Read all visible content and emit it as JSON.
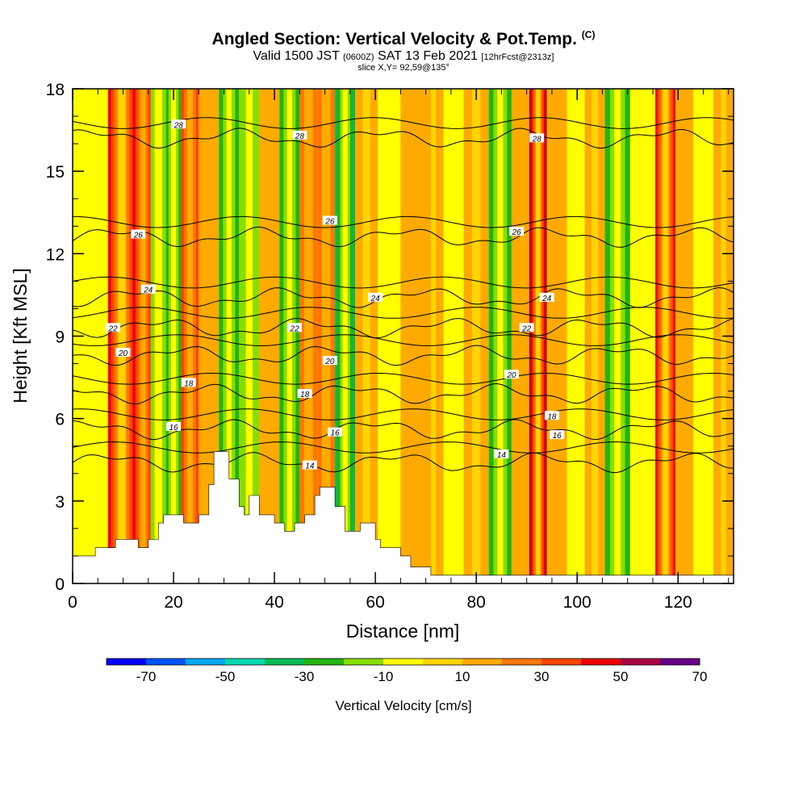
{
  "header": {
    "title": "Angled Section: Vertical Velocity & Pot.Temp.",
    "title_mark": "(C)",
    "valid_prefix": "Valid 1500 JST",
    "valid_utc": "(0600Z)",
    "valid_date": "SAT 13 Feb 2021",
    "fcst": "[12hrFcst@2313z]",
    "slice": "slice X,Y= 92,59@135°"
  },
  "chart_data": {
    "type": "heatmap",
    "xlabel": "Distance [nm]",
    "ylabel": "Height [Kft MSL]",
    "xlim": [
      0,
      131
    ],
    "ylim": [
      0,
      18
    ],
    "x_ticks": [
      0,
      20,
      40,
      60,
      80,
      100,
      120
    ],
    "y_ticks": [
      0,
      3,
      6,
      9,
      12,
      15,
      18
    ],
    "colorbar": {
      "label": "Vertical Velocity [cm/s]",
      "tick_labels": [
        -70,
        -50,
        -30,
        -10,
        10,
        30,
        50,
        70
      ],
      "levels": [
        -80,
        -70,
        -60,
        -50,
        -40,
        -30,
        -20,
        -10,
        0,
        10,
        20,
        30,
        40,
        50,
        60,
        70,
        80
      ],
      "colors": [
        "#0000ff",
        "#0055ff",
        "#00aaff",
        "#00d8b0",
        "#00bb55",
        "#22b410",
        "#88dd00",
        "#ffff00",
        "#ffd400",
        "#ffaa00",
        "#ff7700",
        "#ff4400",
        "#ee0000",
        "#aa0044",
        "#660088"
      ]
    },
    "velocity_columns": [
      {
        "x": 3,
        "v": -10
      },
      {
        "x": 11,
        "v": 45
      },
      {
        "x": 14,
        "v": 30
      },
      {
        "x": 17,
        "v": -20
      },
      {
        "x": 20,
        "v": -30
      },
      {
        "x": 23,
        "v": 30
      },
      {
        "x": 27,
        "v": 10
      },
      {
        "x": 31,
        "v": -25
      },
      {
        "x": 35,
        "v": -15
      },
      {
        "x": 39,
        "v": 10
      },
      {
        "x": 43,
        "v": -25
      },
      {
        "x": 47,
        "v": 20
      },
      {
        "x": 50,
        "v": 20
      },
      {
        "x": 54,
        "v": -40
      },
      {
        "x": 58,
        "v": 15
      },
      {
        "x": 63,
        "v": -10
      },
      {
        "x": 67,
        "v": 10
      },
      {
        "x": 72,
        "v": 12
      },
      {
        "x": 75,
        "v": -10
      },
      {
        "x": 80,
        "v": 15
      },
      {
        "x": 85,
        "v": -25
      },
      {
        "x": 89,
        "v": 10
      },
      {
        "x": 92,
        "v": 55
      },
      {
        "x": 96,
        "v": 10
      },
      {
        "x": 100,
        "v": -10
      },
      {
        "x": 103,
        "v": 15
      },
      {
        "x": 108,
        "v": -25
      },
      {
        "x": 113,
        "v": -10
      },
      {
        "x": 118,
        "v": 45
      },
      {
        "x": 121,
        "v": 10
      },
      {
        "x": 125,
        "v": -10
      },
      {
        "x": 129,
        "v": 12
      }
    ],
    "terrain": [
      {
        "x": 0,
        "h": 1.0
      },
      {
        "x": 4.5,
        "h": 1.0
      },
      {
        "x": 4.5,
        "h": 1.3
      },
      {
        "x": 8.5,
        "h": 1.3
      },
      {
        "x": 8.5,
        "h": 1.6
      },
      {
        "x": 13,
        "h": 1.6
      },
      {
        "x": 13,
        "h": 1.3
      },
      {
        "x": 15,
        "h": 1.3
      },
      {
        "x": 15,
        "h": 1.6
      },
      {
        "x": 17,
        "h": 1.6
      },
      {
        "x": 17,
        "h": 2.2
      },
      {
        "x": 18,
        "h": 2.2
      },
      {
        "x": 18,
        "h": 2.5
      },
      {
        "x": 22,
        "h": 2.5
      },
      {
        "x": 22,
        "h": 2.2
      },
      {
        "x": 25,
        "h": 2.2
      },
      {
        "x": 25,
        "h": 2.5
      },
      {
        "x": 27,
        "h": 2.5
      },
      {
        "x": 27,
        "h": 3.6
      },
      {
        "x": 28,
        "h": 3.6
      },
      {
        "x": 28,
        "h": 4.8
      },
      {
        "x": 31,
        "h": 4.8
      },
      {
        "x": 31,
        "h": 3.8
      },
      {
        "x": 33,
        "h": 3.8
      },
      {
        "x": 33,
        "h": 2.8
      },
      {
        "x": 34,
        "h": 2.8
      },
      {
        "x": 34,
        "h": 2.5
      },
      {
        "x": 35,
        "h": 2.5
      },
      {
        "x": 35,
        "h": 3.2
      },
      {
        "x": 37,
        "h": 3.2
      },
      {
        "x": 37,
        "h": 2.5
      },
      {
        "x": 40,
        "h": 2.5
      },
      {
        "x": 40,
        "h": 2.2
      },
      {
        "x": 42,
        "h": 2.2
      },
      {
        "x": 42,
        "h": 1.9
      },
      {
        "x": 44,
        "h": 1.9
      },
      {
        "x": 44,
        "h": 2.2
      },
      {
        "x": 46,
        "h": 2.2
      },
      {
        "x": 46,
        "h": 2.5
      },
      {
        "x": 48,
        "h": 2.5
      },
      {
        "x": 48,
        "h": 3.2
      },
      {
        "x": 49,
        "h": 3.2
      },
      {
        "x": 49,
        "h": 3.5
      },
      {
        "x": 52,
        "h": 3.5
      },
      {
        "x": 52,
        "h": 2.8
      },
      {
        "x": 54,
        "h": 2.8
      },
      {
        "x": 54,
        "h": 1.9
      },
      {
        "x": 57,
        "h": 1.9
      },
      {
        "x": 57,
        "h": 2.2
      },
      {
        "x": 60,
        "h": 2.2
      },
      {
        "x": 60,
        "h": 1.6
      },
      {
        "x": 61,
        "h": 1.6
      },
      {
        "x": 61,
        "h": 1.3
      },
      {
        "x": 65,
        "h": 1.3
      },
      {
        "x": 65,
        "h": 1.0
      },
      {
        "x": 67,
        "h": 1.0
      },
      {
        "x": 67,
        "h": 0.6
      },
      {
        "x": 71,
        "h": 0.6
      },
      {
        "x": 71,
        "h": 0.3
      },
      {
        "x": 131,
        "h": 0.3
      }
    ],
    "theta_contours": [
      {
        "label": "14",
        "h": 4.4,
        "lab_at": [
          [
            47,
            4.3
          ],
          [
            85,
            4.7
          ]
        ]
      },
      {
        "label": "16",
        "h": 5.6,
        "lab_at": [
          [
            20,
            5.7
          ],
          [
            52,
            5.5
          ],
          [
            96,
            5.4
          ]
        ]
      },
      {
        "label": "18",
        "h": 6.9,
        "lab_at": [
          [
            23,
            7.3
          ],
          [
            46,
            6.9
          ],
          [
            95,
            6.1
          ]
        ]
      },
      {
        "label": "20",
        "h": 8.3,
        "lab_at": [
          [
            10,
            8.4
          ],
          [
            51,
            8.1
          ],
          [
            87,
            7.6
          ]
        ]
      },
      {
        "label": "22",
        "h": 9.3,
        "lab_at": [
          [
            8,
            9.3
          ],
          [
            44,
            9.3
          ],
          [
            90,
            9.3
          ]
        ]
      },
      {
        "label": "24",
        "h": 10.4,
        "lab_at": [
          [
            15,
            10.7
          ],
          [
            60,
            10.4
          ],
          [
            94,
            10.4
          ]
        ]
      },
      {
        "label": "26",
        "h": 12.6,
        "lab_at": [
          [
            13,
            12.7
          ],
          [
            51,
            13.2
          ],
          [
            88,
            12.8
          ]
        ]
      },
      {
        "label": "28",
        "h": 16.2,
        "lab_at": [
          [
            21,
            16.7
          ],
          [
            45,
            16.3
          ],
          [
            92,
            16.2
          ]
        ]
      }
    ]
  }
}
